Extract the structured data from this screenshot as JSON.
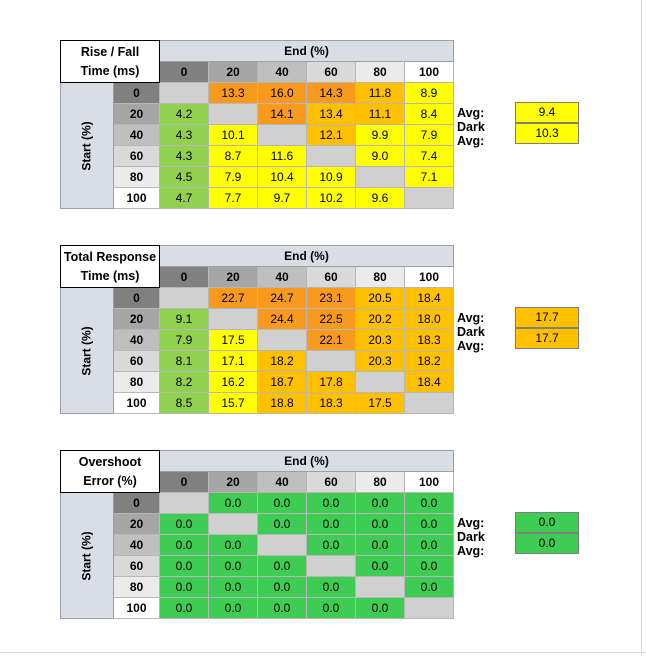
{
  "colors": {
    "green_good": "#92d050",
    "yellow": "#ffff00",
    "gold": "#ffc000",
    "orange": "#f79a1d",
    "overshoot_green": "#3fcc55",
    "diagonal": "#d0d0d0",
    "head_0": "#808080",
    "head_20": "#a6a6a6",
    "head_40": "#bfbfbf",
    "head_60": "#d9d9d9",
    "head_80": "#ebebeb",
    "head_100": "#ffffff",
    "label_bg": "#d9dde6"
  },
  "chart_data": [
    {
      "type": "heatmap",
      "title_line1": "Rise / Fall",
      "title_line2": "Time (ms)",
      "xlabel": "End (%)",
      "ylabel": "Start (%)",
      "x": [
        "0",
        "20",
        "40",
        "60",
        "80",
        "100"
      ],
      "y": [
        "0",
        "20",
        "40",
        "60",
        "80",
        "100"
      ],
      "values": [
        [
          "",
          "13.3",
          "16.0",
          "14.3",
          "11.8",
          "8.9"
        ],
        [
          "4.2",
          "",
          "14.1",
          "13.4",
          "11.1",
          "8.4"
        ],
        [
          "4.3",
          "10.1",
          "",
          "12.1",
          "9.9",
          "7.9"
        ],
        [
          "4.3",
          "8.7",
          "11.6",
          "",
          "9.0",
          "7.4"
        ],
        [
          "4.5",
          "7.9",
          "10.4",
          "10.9",
          "",
          "7.1"
        ],
        [
          "4.7",
          "7.7",
          "9.7",
          "10.2",
          "9.6",
          ""
        ]
      ],
      "cell_colors": [
        [
          "diagonal",
          "orange",
          "orange",
          "orange",
          "gold",
          "yellow"
        ],
        [
          "green_good",
          "diagonal",
          "orange",
          "gold",
          "gold",
          "yellow"
        ],
        [
          "green_good",
          "yellow",
          "diagonal",
          "gold",
          "yellow",
          "yellow"
        ],
        [
          "green_good",
          "yellow",
          "yellow",
          "diagonal",
          "yellow",
          "yellow"
        ],
        [
          "green_good",
          "yellow",
          "yellow",
          "yellow",
          "diagonal",
          "yellow"
        ],
        [
          "green_good",
          "yellow",
          "yellow",
          "yellow",
          "yellow",
          "diagonal"
        ]
      ],
      "avg_label": "Avg:",
      "avg_value": "9.4",
      "avg_color": "yellow",
      "dark_avg_label": "Dark Avg:",
      "dark_avg_value": "10.3",
      "dark_avg_color": "yellow"
    },
    {
      "type": "heatmap",
      "title_line1": "Total Response",
      "title_line2": "Time (ms)",
      "xlabel": "End (%)",
      "ylabel": "Start (%)",
      "x": [
        "0",
        "20",
        "40",
        "60",
        "80",
        "100"
      ],
      "y": [
        "0",
        "20",
        "40",
        "60",
        "80",
        "100"
      ],
      "values": [
        [
          "",
          "22.7",
          "24.7",
          "23.1",
          "20.5",
          "18.4"
        ],
        [
          "9.1",
          "",
          "24.4",
          "22.5",
          "20.2",
          "18.0"
        ],
        [
          "7.9",
          "17.5",
          "",
          "22.1",
          "20.3",
          "18.3"
        ],
        [
          "8.1",
          "17.1",
          "18.2",
          "",
          "20.3",
          "18.2"
        ],
        [
          "8.2",
          "16.2",
          "18.7",
          "17.8",
          "",
          "18.4"
        ],
        [
          "8.5",
          "15.7",
          "18.8",
          "18.3",
          "17.5",
          ""
        ]
      ],
      "cell_colors": [
        [
          "diagonal",
          "orange",
          "orange",
          "orange",
          "gold",
          "gold"
        ],
        [
          "green_good",
          "diagonal",
          "orange",
          "orange",
          "gold",
          "gold"
        ],
        [
          "green_good",
          "yellow",
          "diagonal",
          "orange",
          "gold",
          "gold"
        ],
        [
          "green_good",
          "yellow",
          "gold",
          "diagonal",
          "gold",
          "gold"
        ],
        [
          "green_good",
          "yellow",
          "gold",
          "gold",
          "diagonal",
          "gold"
        ],
        [
          "green_good",
          "yellow",
          "gold",
          "gold",
          "gold",
          "diagonal"
        ]
      ],
      "avg_label": "Avg:",
      "avg_value": "17.7",
      "avg_color": "gold",
      "dark_avg_label": "Dark Avg:",
      "dark_avg_value": "17.7",
      "dark_avg_color": "gold"
    },
    {
      "type": "heatmap",
      "title_line1": "Overshoot",
      "title_line2": "Error (%)",
      "xlabel": "End (%)",
      "ylabel": "Start (%)",
      "x": [
        "0",
        "20",
        "40",
        "60",
        "80",
        "100"
      ],
      "y": [
        "0",
        "20",
        "40",
        "60",
        "80",
        "100"
      ],
      "values": [
        [
          "",
          "0.0",
          "0.0",
          "0.0",
          "0.0",
          "0.0"
        ],
        [
          "0.0",
          "",
          "0.0",
          "0.0",
          "0.0",
          "0.0"
        ],
        [
          "0.0",
          "0.0",
          "",
          "0.0",
          "0.0",
          "0.0"
        ],
        [
          "0.0",
          "0.0",
          "0.0",
          "",
          "0.0",
          "0.0"
        ],
        [
          "0.0",
          "0.0",
          "0.0",
          "0.0",
          "",
          "0.0"
        ],
        [
          "0.0",
          "0.0",
          "0.0",
          "0.0",
          "0.0",
          ""
        ]
      ],
      "cell_colors": [
        [
          "diagonal",
          "overshoot_green",
          "overshoot_green",
          "overshoot_green",
          "overshoot_green",
          "overshoot_green"
        ],
        [
          "overshoot_green",
          "diagonal",
          "overshoot_green",
          "overshoot_green",
          "overshoot_green",
          "overshoot_green"
        ],
        [
          "overshoot_green",
          "overshoot_green",
          "diagonal",
          "overshoot_green",
          "overshoot_green",
          "overshoot_green"
        ],
        [
          "overshoot_green",
          "overshoot_green",
          "overshoot_green",
          "diagonal",
          "overshoot_green",
          "overshoot_green"
        ],
        [
          "overshoot_green",
          "overshoot_green",
          "overshoot_green",
          "overshoot_green",
          "diagonal",
          "overshoot_green"
        ],
        [
          "overshoot_green",
          "overshoot_green",
          "overshoot_green",
          "overshoot_green",
          "overshoot_green",
          "diagonal"
        ]
      ],
      "avg_label": "Avg:",
      "avg_value": "0.0",
      "avg_color": "overshoot_green",
      "dark_avg_label": "Dark Avg:",
      "dark_avg_value": "0.0",
      "dark_avg_color": "overshoot_green"
    }
  ]
}
